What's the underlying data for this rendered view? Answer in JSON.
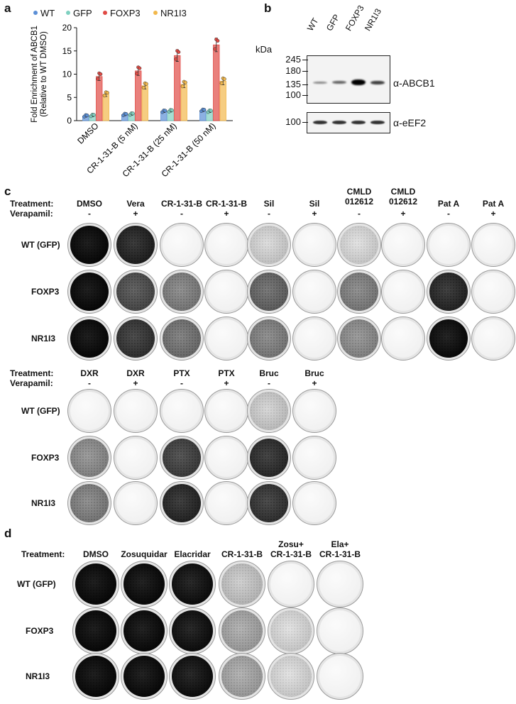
{
  "panels": {
    "a": {
      "label": "a",
      "legend": [
        {
          "name": "WT",
          "color": "#5b8fd6"
        },
        {
          "name": "GFP",
          "color": "#7fd0c0"
        },
        {
          "name": "FOXP3",
          "color": "#e04a44"
        },
        {
          "name": "NR1I3",
          "color": "#f2b84b"
        }
      ],
      "chart_data": {
        "type": "bar",
        "ylabel": "Fold Enrichment of ABCB1 (Relative to WT DMSO)",
        "ylabel_line1": "Fold Enrichment of ABCB1",
        "ylabel_line2": "(Relative to WT DMSO)",
        "categories": [
          "DMSO",
          "CR-1-31-B (5 nM)",
          "CR-1-31-B (25 nM)",
          "CR-1-31-B (50 nM)"
        ],
        "ylim": [
          0,
          20
        ],
        "yticks": [
          "0",
          "5",
          "10",
          "15",
          "20"
        ],
        "series": [
          {
            "name": "WT",
            "values": [
              1.0,
              1.3,
              2.0,
              2.2
            ]
          },
          {
            "name": "GFP",
            "values": [
              1.1,
              1.4,
              2.1,
              2.0
            ]
          },
          {
            "name": "FOXP3",
            "values": [
              9.5,
              10.7,
              14.0,
              16.3
            ]
          },
          {
            "name": "NR1I3",
            "values": [
              5.7,
              7.5,
              7.8,
              8.5
            ]
          }
        ]
      }
    },
    "b": {
      "label": "b",
      "lanes": [
        "WT",
        "GFP",
        "FOXP3",
        "NR1I3"
      ],
      "kda": "kDa",
      "markers_top": [
        "245",
        "180",
        "135",
        "100"
      ],
      "markers_bottom": [
        "100"
      ],
      "antibody_top": "α-ABCB1",
      "antibody_bottom": "α-eEF2"
    },
    "c": {
      "label": "c",
      "treatment_label": "Treatment:",
      "verapamil_label": "Verapamil:",
      "rows": [
        "WT (GFP)",
        "FOXP3",
        "NR1I3"
      ],
      "block1": {
        "treatments": [
          "DMSO",
          "Vera",
          "CR-1-31-B",
          "CR-1-31-B",
          "Sil",
          "Sil",
          "CMLD 012612",
          "CMLD 012612",
          "Pat A",
          "Pat A"
        ],
        "treatments_line1": [
          "DMSO",
          "Vera",
          "CR-1-31-B",
          "CR-1-31-B",
          "Sil",
          "Sil",
          "CMLD",
          "CMLD",
          "Pat A",
          "Pat A"
        ],
        "treatments_line2": [
          "",
          "",
          "",
          "",
          "",
          "",
          "012612",
          "012612",
          "",
          ""
        ],
        "verapamil": [
          "-",
          "+",
          "-",
          "+",
          "-",
          "+",
          "-",
          "+",
          "-",
          "+"
        ],
        "density": [
          [
            0.95,
            0.82,
            0.05,
            0.04,
            0.12,
            0.05,
            0.1,
            0.05,
            0.05,
            0.04
          ],
          [
            0.95,
            0.65,
            0.45,
            0.05,
            0.55,
            0.06,
            0.45,
            0.05,
            0.8,
            0.05
          ],
          [
            0.95,
            0.75,
            0.5,
            0.05,
            0.45,
            0.06,
            0.4,
            0.05,
            0.92,
            0.05
          ]
        ]
      },
      "block2": {
        "treatments": [
          "DXR",
          "DXR",
          "PTX",
          "PTX",
          "Bruc",
          "Bruc"
        ],
        "verapamil": [
          "-",
          "+",
          "-",
          "+",
          "-",
          "+"
        ],
        "density": [
          [
            0.05,
            0.04,
            0.05,
            0.04,
            0.15,
            0.04
          ],
          [
            0.4,
            0.05,
            0.7,
            0.05,
            0.78,
            0.05
          ],
          [
            0.45,
            0.05,
            0.8,
            0.05,
            0.75,
            0.05
          ]
        ]
      }
    },
    "d": {
      "label": "d",
      "treatment_label": "Treatment:",
      "rows": [
        "WT (GFP)",
        "FOXP3",
        "NR1I3"
      ],
      "treatments": [
        "DMSO",
        "Zosuquidar",
        "Elacridar",
        "CR-1-31-B",
        "Zosu+ CR-1-31-B",
        "Ela+ CR-1-31-B"
      ],
      "treatments_line1": [
        "DMSO",
        "Zosuquidar",
        "Elacridar",
        "CR-1-31-B",
        "Zosu+",
        "Ela+"
      ],
      "treatments_line2": [
        "",
        "",
        "",
        "",
        "CR-1-31-B",
        "CR-1-31-B"
      ],
      "density": [
        [
          0.95,
          0.93,
          0.9,
          0.18,
          0.07,
          0.05
        ],
        [
          0.95,
          0.93,
          0.9,
          0.3,
          0.1,
          0.06
        ],
        [
          0.95,
          0.93,
          0.9,
          0.3,
          0.1,
          0.06
        ]
      ]
    }
  }
}
